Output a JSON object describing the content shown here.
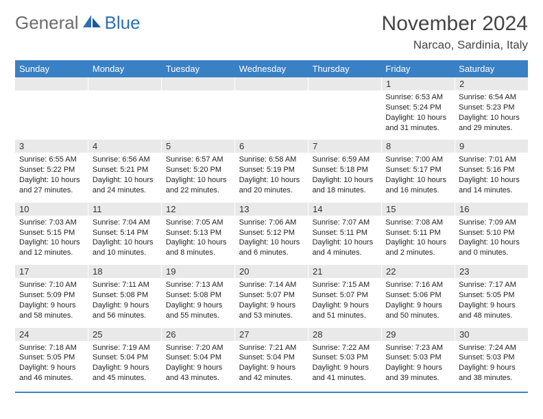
{
  "logo": {
    "part1": "General",
    "part2": "Blue"
  },
  "title": "November 2024",
  "location": "Narcao, Sardinia, Italy",
  "day_headers": [
    "Sunday",
    "Monday",
    "Tuesday",
    "Wednesday",
    "Thursday",
    "Friday",
    "Saturday"
  ],
  "colors": {
    "header_bg": "#3a80c4",
    "header_text": "#ffffff",
    "daynum_bg": "#e9e9e9",
    "text": "#222222",
    "logo_gray": "#6a6a6a",
    "logo_blue": "#2f6fb0"
  },
  "weeks": [
    {
      "nums": [
        "",
        "",
        "",
        "",
        "",
        "1",
        "2"
      ],
      "cells": [
        {
          "sunrise": "",
          "sunset": "",
          "daylight": ""
        },
        {
          "sunrise": "",
          "sunset": "",
          "daylight": ""
        },
        {
          "sunrise": "",
          "sunset": "",
          "daylight": ""
        },
        {
          "sunrise": "",
          "sunset": "",
          "daylight": ""
        },
        {
          "sunrise": "",
          "sunset": "",
          "daylight": ""
        },
        {
          "sunrise": "Sunrise: 6:53 AM",
          "sunset": "Sunset: 5:24 PM",
          "daylight": "Daylight: 10 hours and 31 minutes."
        },
        {
          "sunrise": "Sunrise: 6:54 AM",
          "sunset": "Sunset: 5:23 PM",
          "daylight": "Daylight: 10 hours and 29 minutes."
        }
      ]
    },
    {
      "nums": [
        "3",
        "4",
        "5",
        "6",
        "7",
        "8",
        "9"
      ],
      "cells": [
        {
          "sunrise": "Sunrise: 6:55 AM",
          "sunset": "Sunset: 5:22 PM",
          "daylight": "Daylight: 10 hours and 27 minutes."
        },
        {
          "sunrise": "Sunrise: 6:56 AM",
          "sunset": "Sunset: 5:21 PM",
          "daylight": "Daylight: 10 hours and 24 minutes."
        },
        {
          "sunrise": "Sunrise: 6:57 AM",
          "sunset": "Sunset: 5:20 PM",
          "daylight": "Daylight: 10 hours and 22 minutes."
        },
        {
          "sunrise": "Sunrise: 6:58 AM",
          "sunset": "Sunset: 5:19 PM",
          "daylight": "Daylight: 10 hours and 20 minutes."
        },
        {
          "sunrise": "Sunrise: 6:59 AM",
          "sunset": "Sunset: 5:18 PM",
          "daylight": "Daylight: 10 hours and 18 minutes."
        },
        {
          "sunrise": "Sunrise: 7:00 AM",
          "sunset": "Sunset: 5:17 PM",
          "daylight": "Daylight: 10 hours and 16 minutes."
        },
        {
          "sunrise": "Sunrise: 7:01 AM",
          "sunset": "Sunset: 5:16 PM",
          "daylight": "Daylight: 10 hours and 14 minutes."
        }
      ]
    },
    {
      "nums": [
        "10",
        "11",
        "12",
        "13",
        "14",
        "15",
        "16"
      ],
      "cells": [
        {
          "sunrise": "Sunrise: 7:03 AM",
          "sunset": "Sunset: 5:15 PM",
          "daylight": "Daylight: 10 hours and 12 minutes."
        },
        {
          "sunrise": "Sunrise: 7:04 AM",
          "sunset": "Sunset: 5:14 PM",
          "daylight": "Daylight: 10 hours and 10 minutes."
        },
        {
          "sunrise": "Sunrise: 7:05 AM",
          "sunset": "Sunset: 5:13 PM",
          "daylight": "Daylight: 10 hours and 8 minutes."
        },
        {
          "sunrise": "Sunrise: 7:06 AM",
          "sunset": "Sunset: 5:12 PM",
          "daylight": "Daylight: 10 hours and 6 minutes."
        },
        {
          "sunrise": "Sunrise: 7:07 AM",
          "sunset": "Sunset: 5:11 PM",
          "daylight": "Daylight: 10 hours and 4 minutes."
        },
        {
          "sunrise": "Sunrise: 7:08 AM",
          "sunset": "Sunset: 5:11 PM",
          "daylight": "Daylight: 10 hours and 2 minutes."
        },
        {
          "sunrise": "Sunrise: 7:09 AM",
          "sunset": "Sunset: 5:10 PM",
          "daylight": "Daylight: 10 hours and 0 minutes."
        }
      ]
    },
    {
      "nums": [
        "17",
        "18",
        "19",
        "20",
        "21",
        "22",
        "23"
      ],
      "cells": [
        {
          "sunrise": "Sunrise: 7:10 AM",
          "sunset": "Sunset: 5:09 PM",
          "daylight": "Daylight: 9 hours and 58 minutes."
        },
        {
          "sunrise": "Sunrise: 7:11 AM",
          "sunset": "Sunset: 5:08 PM",
          "daylight": "Daylight: 9 hours and 56 minutes."
        },
        {
          "sunrise": "Sunrise: 7:13 AM",
          "sunset": "Sunset: 5:08 PM",
          "daylight": "Daylight: 9 hours and 55 minutes."
        },
        {
          "sunrise": "Sunrise: 7:14 AM",
          "sunset": "Sunset: 5:07 PM",
          "daylight": "Daylight: 9 hours and 53 minutes."
        },
        {
          "sunrise": "Sunrise: 7:15 AM",
          "sunset": "Sunset: 5:07 PM",
          "daylight": "Daylight: 9 hours and 51 minutes."
        },
        {
          "sunrise": "Sunrise: 7:16 AM",
          "sunset": "Sunset: 5:06 PM",
          "daylight": "Daylight: 9 hours and 50 minutes."
        },
        {
          "sunrise": "Sunrise: 7:17 AM",
          "sunset": "Sunset: 5:05 PM",
          "daylight": "Daylight: 9 hours and 48 minutes."
        }
      ]
    },
    {
      "nums": [
        "24",
        "25",
        "26",
        "27",
        "28",
        "29",
        "30"
      ],
      "cells": [
        {
          "sunrise": "Sunrise: 7:18 AM",
          "sunset": "Sunset: 5:05 PM",
          "daylight": "Daylight: 9 hours and 46 minutes."
        },
        {
          "sunrise": "Sunrise: 7:19 AM",
          "sunset": "Sunset: 5:04 PM",
          "daylight": "Daylight: 9 hours and 45 minutes."
        },
        {
          "sunrise": "Sunrise: 7:20 AM",
          "sunset": "Sunset: 5:04 PM",
          "daylight": "Daylight: 9 hours and 43 minutes."
        },
        {
          "sunrise": "Sunrise: 7:21 AM",
          "sunset": "Sunset: 5:04 PM",
          "daylight": "Daylight: 9 hours and 42 minutes."
        },
        {
          "sunrise": "Sunrise: 7:22 AM",
          "sunset": "Sunset: 5:03 PM",
          "daylight": "Daylight: 9 hours and 41 minutes."
        },
        {
          "sunrise": "Sunrise: 7:23 AM",
          "sunset": "Sunset: 5:03 PM",
          "daylight": "Daylight: 9 hours and 39 minutes."
        },
        {
          "sunrise": "Sunrise: 7:24 AM",
          "sunset": "Sunset: 5:03 PM",
          "daylight": "Daylight: 9 hours and 38 minutes."
        }
      ]
    }
  ]
}
